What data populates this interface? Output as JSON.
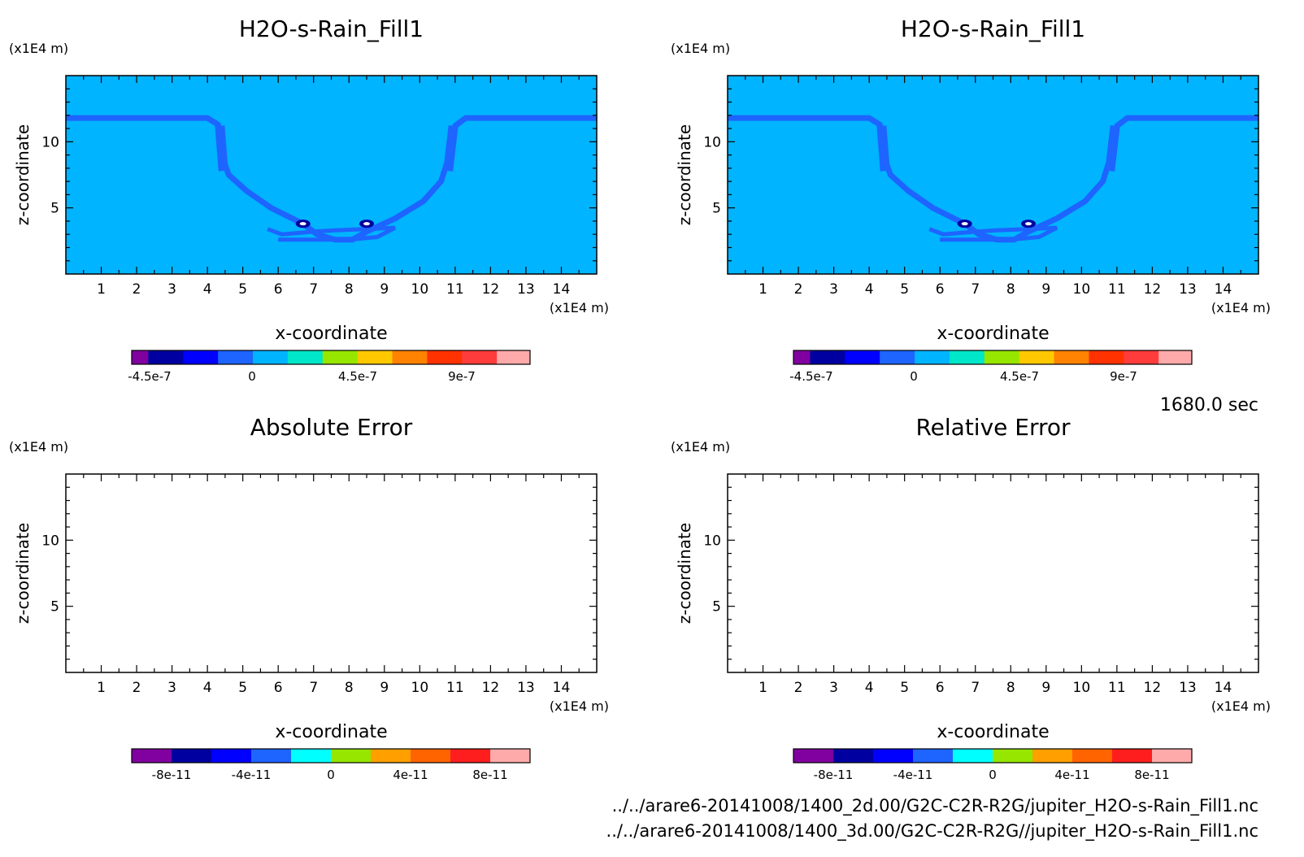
{
  "panels": [
    {
      "title": "H2O-s-Rain_Fill1",
      "xlabel": "x-coordinate",
      "ylabel": "z-coordinate",
      "x_unit": "(x1E4 m)",
      "y_unit": "(x1E4 m)",
      "colorbar_labels": [
        "-4.5e-7",
        "0",
        "4.5e-7",
        "9e-7"
      ]
    },
    {
      "title": "H2O-s-Rain_Fill1",
      "xlabel": "x-coordinate",
      "ylabel": "z-coordinate",
      "x_unit": "(x1E4 m)",
      "y_unit": "(x1E4 m)",
      "colorbar_labels": [
        "-4.5e-7",
        "0",
        "4.5e-7",
        "9e-7"
      ]
    },
    {
      "title": "Absolute Error",
      "xlabel": "x-coordinate",
      "ylabel": "z-coordinate",
      "x_unit": "(x1E4 m)",
      "y_unit": "(x1E4 m)",
      "colorbar_labels": [
        "-8e-11",
        "-4e-11",
        "0",
        "4e-11",
        "8e-11"
      ]
    },
    {
      "title": "Relative Error",
      "xlabel": "x-coordinate",
      "ylabel": "z-coordinate",
      "x_unit": "(x1E4 m)",
      "y_unit": "(x1E4 m)",
      "colorbar_labels": [
        "-8e-11",
        "-4e-11",
        "0",
        "4e-11",
        "8e-11"
      ]
    }
  ],
  "time_label": "1680.0 sec",
  "file_paths": [
    "../../arare6-20141008/1400_2d.00/G2C-C2R-R2G/jupiter_H2O-s-Rain_Fill1.nc",
    "../../arare6-20141008/1400_3d.00/G2C-C2R-R2G//jupiter_H2O-s-Rain_Fill1.nc"
  ],
  "colors": {
    "top_colorbar": [
      "#8000a0",
      "#0000a0",
      "#0000ff",
      "#1e64ff",
      "#00b4ff",
      "#00e6c8",
      "#96e600",
      "#ffc800",
      "#ff8200",
      "#ff3200",
      "#ff3c3c",
      "#ffaaaa"
    ],
    "error_colorbar": [
      "#8000a0",
      "#0000a0",
      "#0000ff",
      "#1e64ff",
      "#00ffff",
      "#96e600",
      "#ffa000",
      "#ff6400",
      "#ff1e1e",
      "#ffaaaa"
    ],
    "field_background": "#00b4ff",
    "field_feature": "#1e64ff"
  },
  "chart_data": [
    {
      "type": "heatmap",
      "title": "H2O-s-Rain_Fill1",
      "xlabel": "x-coordinate",
      "ylabel": "z-coordinate",
      "xlim": [
        0,
        15
      ],
      "ylim": [
        0,
        15
      ],
      "x_ticks": [
        1,
        2,
        3,
        4,
        5,
        6,
        7,
        8,
        9,
        10,
        11,
        12,
        13,
        14
      ],
      "y_ticks": [
        5,
        10
      ],
      "colorbar_ticks": [
        "-4.5e-7",
        "0",
        "4.5e-7",
        "9e-7"
      ],
      "field": "near-zero background with a U-shaped band of slightly negative values",
      "feature_path": [
        [
          0,
          11.8
        ],
        [
          4.0,
          11.8
        ],
        [
          4.3,
          11.3
        ],
        [
          4.4,
          9.0
        ],
        [
          4.6,
          7.5
        ],
        [
          5.1,
          6.3
        ],
        [
          5.8,
          5.0
        ],
        [
          6.7,
          3.8
        ],
        [
          7.1,
          3.0
        ],
        [
          7.6,
          2.6
        ],
        [
          8.1,
          2.6
        ],
        [
          8.5,
          3.2
        ],
        [
          9.3,
          4.2
        ],
        [
          10.1,
          5.5
        ],
        [
          10.6,
          7.0
        ],
        [
          10.9,
          9.5
        ],
        [
          11.0,
          11.2
        ],
        [
          11.3,
          11.8
        ],
        [
          15,
          11.8
        ]
      ]
    },
    {
      "type": "heatmap",
      "title": "H2O-s-Rain_Fill1",
      "xlabel": "x-coordinate",
      "ylabel": "z-coordinate",
      "xlim": [
        0,
        15
      ],
      "ylim": [
        0,
        15
      ],
      "x_ticks": [
        1,
        2,
        3,
        4,
        5,
        6,
        7,
        8,
        9,
        10,
        11,
        12,
        13,
        14
      ],
      "y_ticks": [
        5,
        10
      ],
      "colorbar_ticks": [
        "-4.5e-7",
        "0",
        "4.5e-7",
        "9e-7"
      ],
      "field": "near-zero background with a U-shaped band of slightly negative values",
      "feature_path": [
        [
          0,
          11.8
        ],
        [
          4.0,
          11.8
        ],
        [
          4.3,
          11.3
        ],
        [
          4.4,
          9.0
        ],
        [
          4.6,
          7.5
        ],
        [
          5.1,
          6.3
        ],
        [
          5.8,
          5.0
        ],
        [
          6.7,
          3.8
        ],
        [
          7.1,
          3.0
        ],
        [
          7.6,
          2.6
        ],
        [
          8.1,
          2.6
        ],
        [
          8.5,
          3.2
        ],
        [
          9.3,
          4.2
        ],
        [
          10.1,
          5.5
        ],
        [
          10.6,
          7.0
        ],
        [
          10.9,
          9.5
        ],
        [
          11.0,
          11.2
        ],
        [
          11.3,
          11.8
        ],
        [
          15,
          11.8
        ]
      ]
    },
    {
      "type": "heatmap",
      "title": "Absolute Error",
      "xlabel": "x-coordinate",
      "ylabel": "z-coordinate",
      "xlim": [
        0,
        15
      ],
      "ylim": [
        0,
        15
      ],
      "x_ticks": [
        1,
        2,
        3,
        4,
        5,
        6,
        7,
        8,
        9,
        10,
        11,
        12,
        13,
        14
      ],
      "y_ticks": [
        5,
        10
      ],
      "colorbar_ticks": [
        "-8e-11",
        "-4e-11",
        "0",
        "4e-11",
        "8e-11"
      ],
      "field": "empty"
    },
    {
      "type": "heatmap",
      "title": "Relative Error",
      "xlabel": "x-coordinate",
      "ylabel": "z-coordinate",
      "xlim": [
        0,
        15
      ],
      "ylim": [
        0,
        15
      ],
      "x_ticks": [
        1,
        2,
        3,
        4,
        5,
        6,
        7,
        8,
        9,
        10,
        11,
        12,
        13,
        14
      ],
      "y_ticks": [
        5,
        10
      ],
      "colorbar_ticks": [
        "-8e-11",
        "-4e-11",
        "0",
        "4e-11",
        "8e-11"
      ],
      "field": "empty"
    }
  ]
}
